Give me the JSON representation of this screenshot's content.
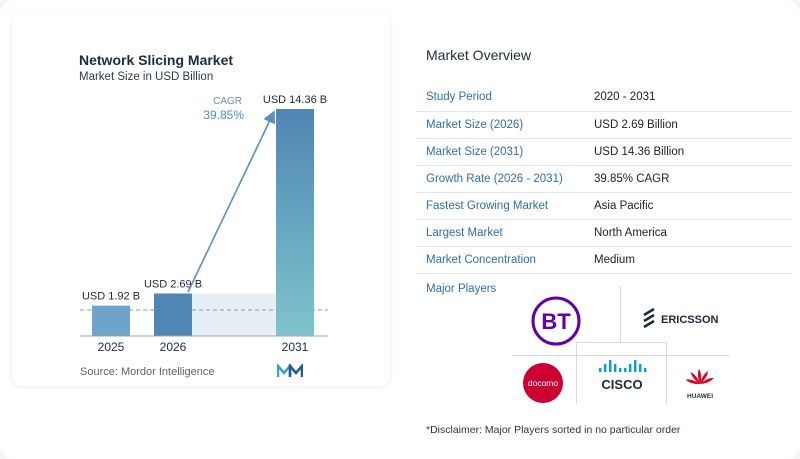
{
  "chart_data": {
    "type": "bar",
    "title": "Network Slicing Market",
    "subtitle": "Market Size in USD Billion",
    "categories": [
      "2025",
      "2026",
      "2031"
    ],
    "values": [
      1.92,
      2.69,
      14.36
    ],
    "value_labels": [
      "USD 1.92 B",
      "USD 2.69 B",
      "USD 14.36 B"
    ],
    "cagr_label": "CAGR",
    "cagr_value": "39.85%",
    "source": "Source:  Mordor Intelligence",
    "colors": {
      "bar_light": "#6fa3c9",
      "bar_dark": "#4f86b3",
      "bar_teal": "#7fc4cc",
      "arrow": "#5a8fbf",
      "cagr_text": "#4a8fc0"
    }
  },
  "overview": {
    "title": "Market Overview",
    "rows": [
      {
        "key": "Study Period",
        "value": "2020 - 2031"
      },
      {
        "key": "Market Size (2026)",
        "value": "USD 2.69 Billion"
      },
      {
        "key": "Market Size (2031)",
        "value": "USD 14.36 Billion"
      },
      {
        "key": "Growth Rate (2026 - 2031)",
        "value": "39.85% CAGR"
      },
      {
        "key": "Fastest Growing Market",
        "value": "Asia Pacific"
      },
      {
        "key": "Largest Market",
        "value": "North America"
      },
      {
        "key": "Market Concentration",
        "value": "Medium"
      }
    ]
  },
  "players": {
    "title": "Major Players",
    "logos": [
      {
        "name": "BT",
        "text": "BT",
        "color": "#6400aa"
      },
      {
        "name": "Ericsson",
        "text": "ERICSSON",
        "color": "#1a2a3a"
      },
      {
        "name": "docomo",
        "text": "docomo",
        "color": "#cc0033"
      },
      {
        "name": "Cisco",
        "text": "CISCO",
        "color": "#1a2a3a",
        "accent": "#049fd9"
      },
      {
        "name": "Huawei",
        "text": "HUAWEI",
        "color": "#cf0a2c"
      }
    ],
    "disclaimer": "*Disclaimer: Major Players sorted in no particular order"
  }
}
